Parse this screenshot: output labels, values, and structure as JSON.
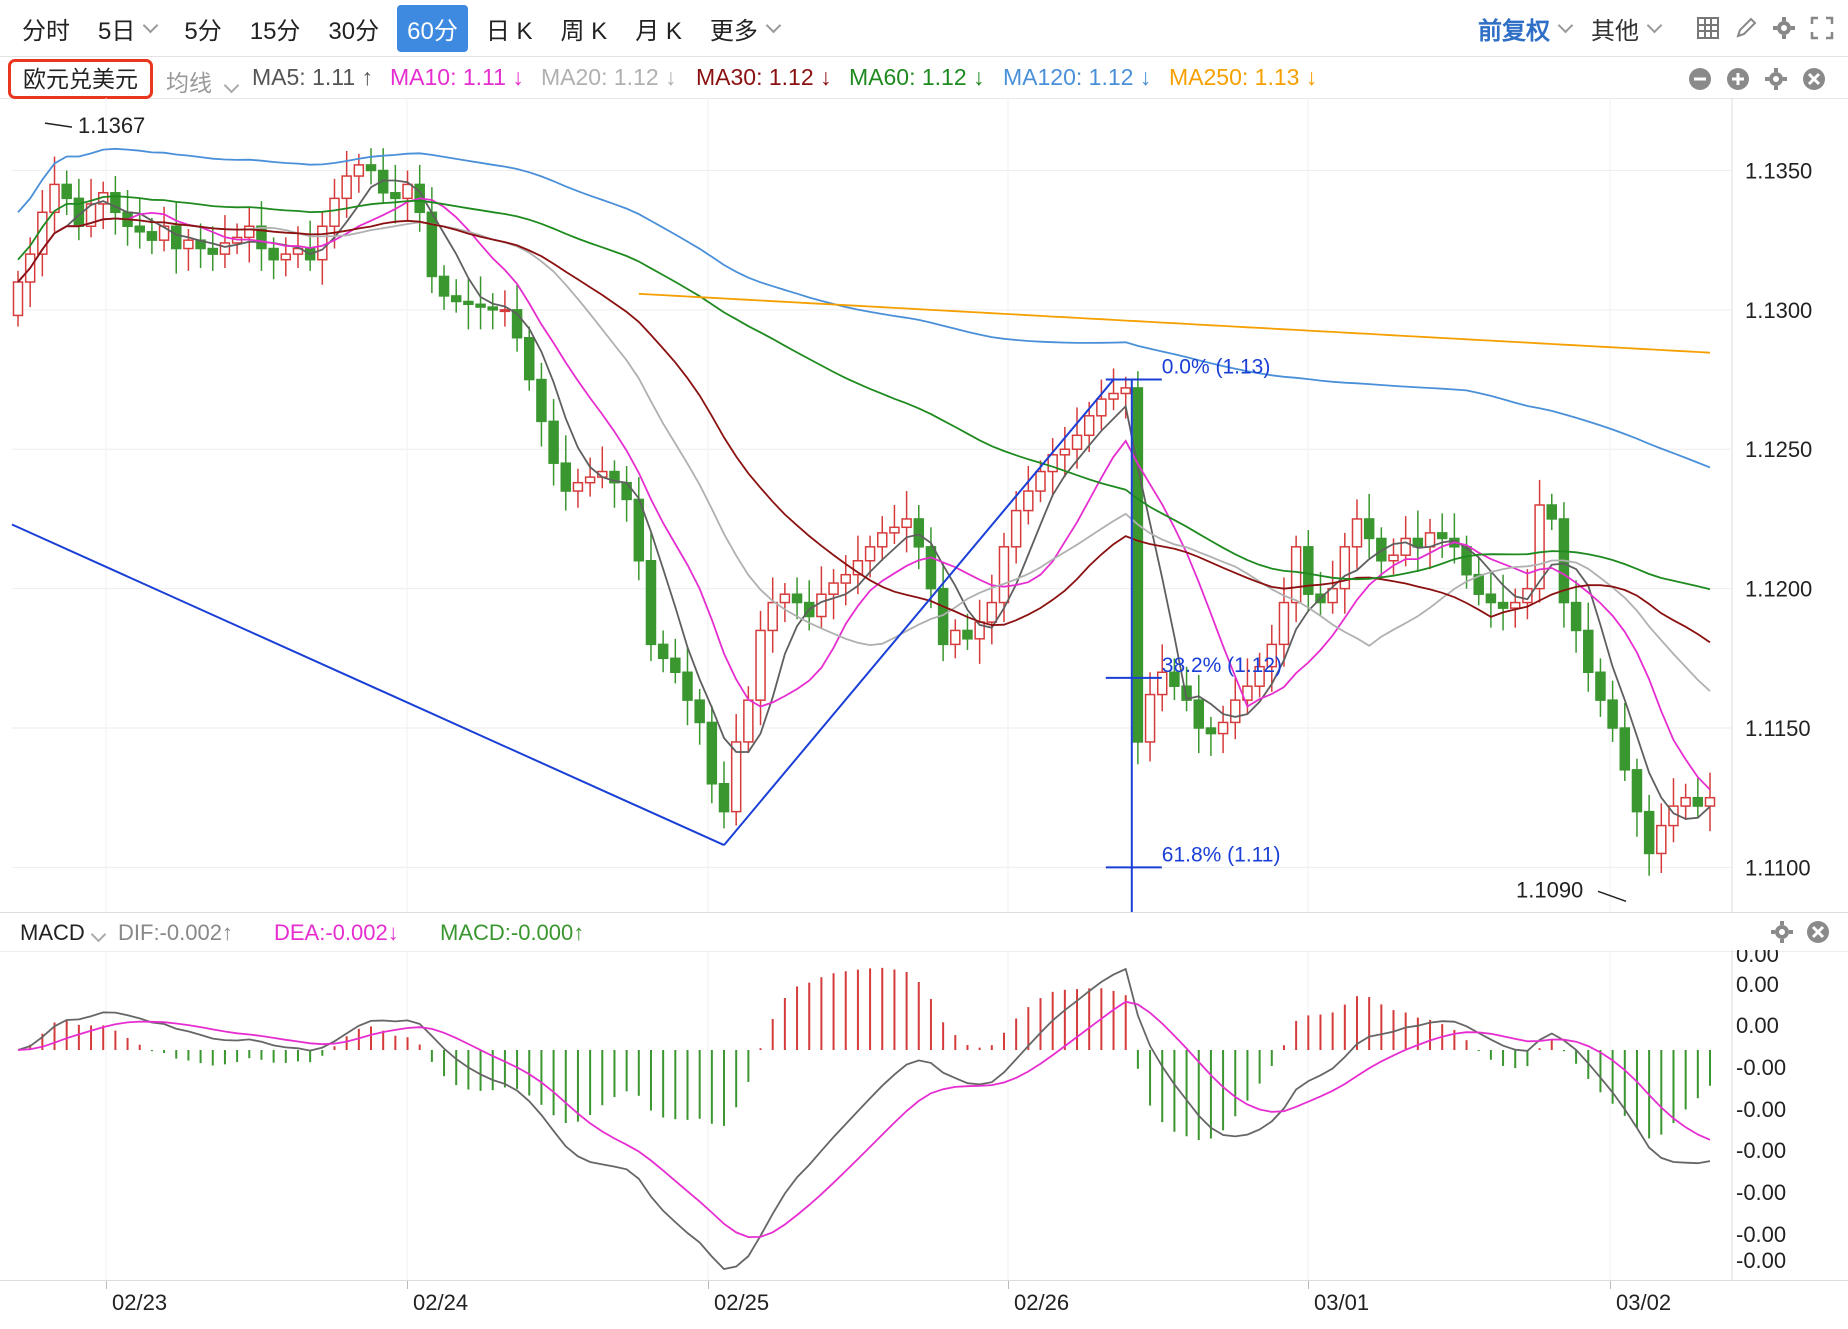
{
  "toolbar": {
    "tabs": [
      "分时",
      "5日",
      "5分",
      "15分",
      "30分",
      "60分",
      "日 K",
      "周 K",
      "月 K",
      "更多"
    ],
    "active_tab": "60分",
    "adjust": "前复权",
    "other": "其他"
  },
  "legend": {
    "symbol": "欧元兑美元",
    "avg_line": "均线",
    "ma5": "MA5: 1.11 ↑",
    "ma10": "MA10: 1.11 ↓",
    "ma20": "MA20: 1.12 ↓",
    "ma30": "MA30: 1.12 ↓",
    "ma60": "MA60: 1.12 ↓",
    "ma120": "MA120: 1.12 ↓",
    "ma250": "MA250: 1.13 ↓"
  },
  "colors": {
    "up": "#d63b3b",
    "down": "#3a962f",
    "ma5": "#5f5f5f",
    "ma10": "#e62ed0",
    "ma20": "#b0b0b0",
    "ma30": "#8b1010",
    "ma60": "#1f8a1f",
    "ma120": "#4a90d9",
    "ma250": "#f5a000",
    "fib": "#1a3fd6",
    "accent": "#3d8ae0"
  },
  "annotations": {
    "high": "1.1367",
    "low": "1.1090",
    "fib0": "0.0% (1.13)",
    "fib382": "38.2% (1.12)",
    "fib618": "61.8% (1.11)"
  },
  "macd": {
    "name": "MACD",
    "dif": "DIF:-0.002↑",
    "dea": "DEA:-0.002↓",
    "macd": "MACD:-0.000↑",
    "axis_labels": [
      "0.00",
      "0.00",
      "0.00",
      "-0.00",
      "-0.00",
      "-0.00",
      "-0.00",
      "-0.00",
      "-0.00"
    ]
  },
  "chart_data": {
    "type": "candlestick",
    "title": "欧元兑美元",
    "interval": "60分",
    "x_labels": [
      "02/23",
      "02/24",
      "02/25",
      "02/26",
      "03/01",
      "03/02"
    ],
    "y_ticks": [
      1.11,
      1.115,
      1.12,
      1.125,
      1.13,
      1.135
    ],
    "y_labels": [
      "1.1100",
      "1.1150",
      "1.1200",
      "1.1250",
      "1.1300",
      "1.1350"
    ],
    "ylim": [
      1.1084,
      1.1376
    ],
    "high": 1.1367,
    "low": 1.109,
    "closes": [
      1.131,
      1.132,
      1.1335,
      1.1345,
      1.134,
      1.133,
      1.1338,
      1.1342,
      1.1335,
      1.133,
      1.1328,
      1.1325,
      1.133,
      1.1322,
      1.1325,
      1.1322,
      1.132,
      1.1324,
      1.1326,
      1.133,
      1.1322,
      1.1318,
      1.132,
      1.1322,
      1.1318,
      1.133,
      1.134,
      1.1348,
      1.1352,
      1.135,
      1.1342,
      1.134,
      1.1345,
      1.1335,
      1.1312,
      1.1305,
      1.1303,
      1.1302,
      1.1301,
      1.13,
      1.13,
      1.129,
      1.1275,
      1.126,
      1.1245,
      1.1235,
      1.1238,
      1.124,
      1.1242,
      1.1238,
      1.1232,
      1.121,
      1.118,
      1.1175,
      1.117,
      1.116,
      1.1152,
      1.113,
      1.112,
      1.1145,
      1.116,
      1.1185,
      1.1195,
      1.1198,
      1.1195,
      1.119,
      1.1198,
      1.1202,
      1.1205,
      1.121,
      1.1215,
      1.122,
      1.1222,
      1.1225,
      1.1215,
      1.12,
      1.118,
      1.1185,
      1.1182,
      1.1188,
      1.1195,
      1.1215,
      1.1228,
      1.1235,
      1.1242,
      1.1248,
      1.125,
      1.1255,
      1.1262,
      1.1268,
      1.127,
      1.1272,
      1.1145,
      1.1162,
      1.117,
      1.1165,
      1.116,
      1.115,
      1.1148,
      1.1152,
      1.116,
      1.1165,
      1.1172,
      1.118,
      1.1195,
      1.1215,
      1.1198,
      1.1195,
      1.12,
      1.1215,
      1.1225,
      1.1218,
      1.121,
      1.1212,
      1.1218,
      1.1215,
      1.122,
      1.1218,
      1.1215,
      1.1205,
      1.1198,
      1.1195,
      1.1193,
      1.1195,
      1.12,
      1.123,
      1.1225,
      1.1195,
      1.1185,
      1.117,
      1.116,
      1.115,
      1.1135,
      1.112,
      1.1105,
      1.1115,
      1.1122,
      1.1125,
      1.1122,
      1.1125
    ],
    "ma_periods": [
      5,
      10,
      20,
      30,
      60,
      120,
      250
    ]
  }
}
